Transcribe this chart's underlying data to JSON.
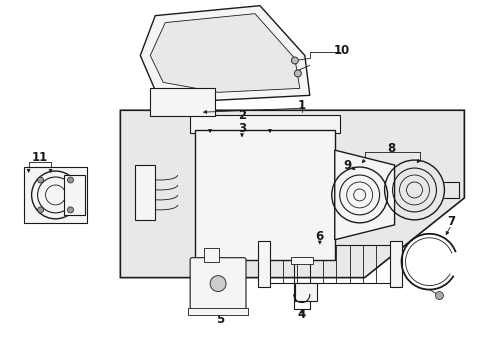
{
  "bg_color": "#ffffff",
  "lc": "#1a1a1a",
  "box_fill": "#e8e8e8",
  "part_fill": "#f5f5f5",
  "white": "#ffffff",
  "label_fs": 8.5,
  "lw_main": 1.0,
  "lw_thin": 0.6,
  "lw_med": 0.8
}
